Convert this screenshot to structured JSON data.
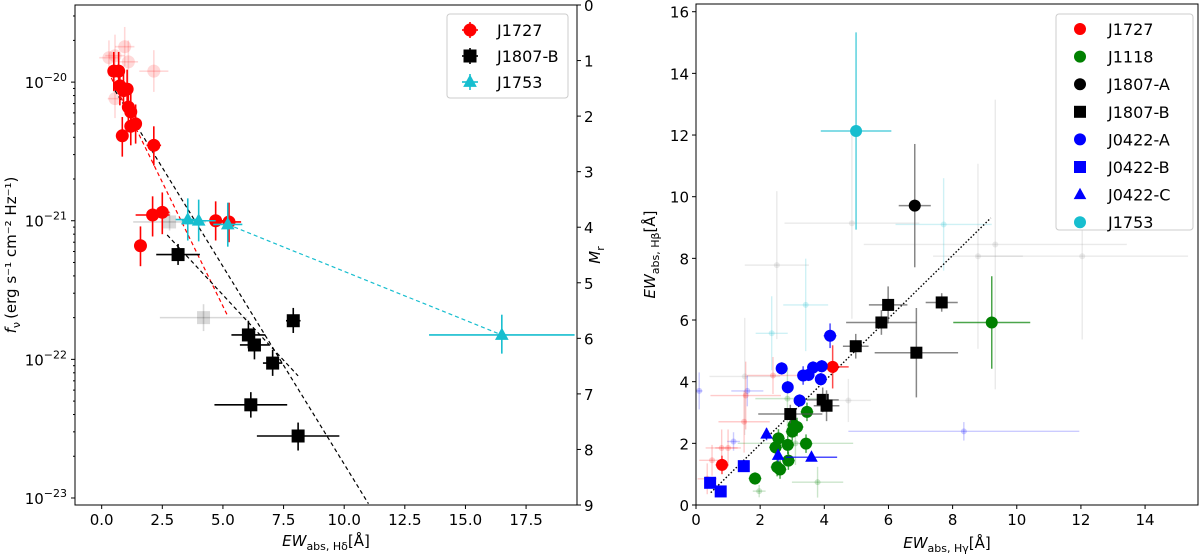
{
  "chart_data": [
    {
      "type": "scatter",
      "xlabel": "EW",
      "xlabel_sub": "abs, Hδ",
      "xlabel_unit": "[Å]",
      "ylabel": "f",
      "ylabel_sub": "ν",
      "ylabel_unit": "(erg s⁻¹ cm⁻² Hz⁻¹)",
      "y2label": "M",
      "y2label_sub": "r",
      "xlim": [
        -1.1,
        19.6
      ],
      "ylim": [
        8.9e-24,
        3.6e-20
      ],
      "yscale": "log",
      "y2lim": [
        0,
        9
      ],
      "y2_inverted": true,
      "xticks": [
        "0.0",
        "2.5",
        "5.0",
        "7.5",
        "10.0",
        "12.5",
        "15.0",
        "17.5"
      ],
      "yticks": [
        {
          "base": "10",
          "exp": "−20"
        },
        {
          "base": "10",
          "exp": "−21"
        },
        {
          "base": "10",
          "exp": "−22"
        },
        {
          "base": "10",
          "exp": "−23"
        }
      ],
      "y2ticks": [
        "0",
        "1",
        "2",
        "3",
        "4",
        "5",
        "6",
        "7",
        "8",
        "9"
      ],
      "grid": false,
      "legend_position": "top-right",
      "series": [
        {
          "name": "J1727",
          "color": "#ff0000",
          "marker": "circle",
          "points": [
            [
              0.5,
              1.2e-20,
              0.2,
              8.6e-21,
              1.65e-20
            ],
            [
              0.7,
              1.2e-20,
              0.2,
              8.6e-21,
              1.65e-20
            ],
            [
              0.75,
              9.4e-21,
              0.2,
              6.8e-21,
              1.3e-20
            ],
            [
              0.9,
              8.7e-21,
              0.2,
              6.3e-21,
              1.2e-20
            ],
            [
              1.05,
              8.9e-21,
              0.2,
              6.4e-21,
              1.23e-20
            ],
            [
              1.1,
              6.6e-21,
              0.2,
              4.8e-21,
              9.1e-21
            ],
            [
              1.2,
              6.1e-21,
              0.2,
              4.4e-21,
              8.4e-21
            ],
            [
              0.85,
              4.1e-21,
              0.2,
              2.9e-21,
              5.6e-21
            ],
            [
              1.2,
              4.8e-21,
              0.2,
              3.5e-21,
              6.6e-21
            ],
            [
              1.4,
              5e-21,
              0.2,
              3.6e-21,
              6.9e-21
            ],
            [
              2.15,
              3.5e-21,
              0.3,
              2.5e-21,
              4.8e-21
            ],
            [
              2.1,
              1.1e-21,
              0.7,
              7.7e-22,
              1.5e-21
            ],
            [
              2.5,
              1.15e-21,
              0.3,
              8e-22,
              1.6e-21
            ],
            [
              1.6,
              6.6e-22,
              0.2,
              4.7e-22,
              9.1e-22
            ],
            [
              4.7,
              1e-21,
              0.4,
              7.2e-22,
              1.38e-21
            ],
            [
              5.25,
              9.8e-22,
              0.5,
              7e-22,
              1.35e-21
            ]
          ],
          "faded": [
            [
              0.3,
              1.5e-20,
              0.4,
              1.1e-20,
              2e-20
            ],
            [
              0.55,
              1.55e-20,
              0.4,
              1.1e-20,
              2.2e-20
            ],
            [
              0.95,
              1.8e-20,
              0.4,
              1.3e-20,
              2.5e-20
            ],
            [
              1.1,
              1.4e-20,
              0.4,
              1e-20,
              2e-20
            ],
            [
              0.55,
              7.6e-21,
              0.3,
              5.5e-21,
              1.05e-20
            ],
            [
              2.15,
              1.2e-20,
              0.6,
              8.5e-21,
              1.7e-20
            ]
          ],
          "fit": [
            [
              0.4,
              1.07e-20
            ],
            [
              5.2,
              2.05e-22
            ]
          ]
        },
        {
          "name": "J1807-B",
          "color": "#000000",
          "marker": "square",
          "points": [
            [
              3.15,
              5.7e-22,
              0.9,
              4.8e-22,
              6.8e-22
            ],
            [
              6.05,
              1.5e-22,
              0.7,
              1.2e-22,
              1.9e-22
            ],
            [
              6.3,
              1.27e-22,
              0.6,
              1e-22,
              1.6e-22
            ],
            [
              7.05,
              9.4e-23,
              0.4,
              7.6e-23,
              1.17e-22
            ],
            [
              7.9,
              1.9e-22,
              0.3,
              1.55e-22,
              2.35e-22
            ],
            [
              6.15,
              4.7e-23,
              1.5,
              3.8e-23,
              5.8e-23
            ],
            [
              8.1,
              2.8e-23,
              1.7,
              2.2e-23,
              3.5e-23
            ]
          ],
          "faded": [
            [
              2.8,
              9.8e-22,
              1.5,
              8.5e-22,
              1.15e-21
            ],
            [
              4.2,
              2e-22,
              1.8,
              1.6e-22,
              2.5e-22
            ]
          ],
          "fits": [
            [
              [
                0.55,
                8.7e-21
              ],
              [
                11.0,
                9.1e-24
              ]
            ],
            [
              [
                2.7,
                7.9e-22
              ],
              [
                8.1,
                7.6e-23
              ]
            ]
          ]
        },
        {
          "name": "J1753",
          "color": "#17becf",
          "marker": "triangle",
          "points": [
            [
              3.55,
              1.02e-21,
              0.5,
              7.2e-22,
              1.45e-21
            ],
            [
              4.0,
              1e-21,
              0.7,
              7.1e-22,
              1.42e-21
            ],
            [
              5.2,
              9.4e-22,
              0.6,
              6.5e-22,
              1.35e-21
            ],
            [
              16.5,
              1.5e-22,
              3.0,
              1.1e-22,
              2.1e-22
            ]
          ],
          "fit": [
            [
              5.2,
              9.4e-22
            ],
            [
              16.5,
              1.5e-22
            ]
          ]
        }
      ]
    },
    {
      "type": "scatter",
      "xlabel": "EW",
      "xlabel_sub": "abs, Hγ",
      "xlabel_unit": "[Å]",
      "ylabel": "EW",
      "ylabel_sub": "abs, Hβ",
      "ylabel_unit": "[Å]",
      "xlim": [
        0,
        15.65
      ],
      "ylim": [
        0,
        16.25
      ],
      "xticks": [
        "0",
        "2",
        "4",
        "6",
        "8",
        "10",
        "12",
        "14"
      ],
      "yticks": [
        "0",
        "2",
        "4",
        "6",
        "8",
        "10",
        "12",
        "14",
        "16"
      ],
      "grid": false,
      "legend_position": "top-right",
      "one_to_one_line": [
        [
          0.46,
          0.4
        ],
        [
          9.19,
          9.31
        ]
      ],
      "series": [
        {
          "name": "J1727",
          "color": "#ff0000",
          "marker": "circle",
          "points": [
            [
              0.81,
              1.3,
              0.2,
              0.3
            ],
            [
              4.26,
              4.48,
              0.5,
              0.7
            ]
          ]
        },
        {
          "name": "J1118",
          "color": "#008000",
          "marker": "circle",
          "points": [
            [
              1.84,
              0.86,
              0.2,
              0.2
            ],
            [
              2.48,
              1.87,
              0.2,
              0.3
            ],
            [
              2.57,
              2.16,
              0.2,
              0.3
            ],
            [
              2.53,
              1.23,
              0.2,
              0.3
            ],
            [
              2.62,
              1.15,
              0.2,
              0.3
            ],
            [
              2.86,
              1.95,
              0.2,
              0.3
            ],
            [
              2.88,
              1.44,
              0.2,
              0.3
            ],
            [
              3.0,
              2.38,
              0.2,
              0.3
            ],
            [
              3.05,
              2.59,
              0.2,
              0.3
            ],
            [
              3.15,
              2.53,
              0.2,
              0.3
            ],
            [
              3.46,
              3.02,
              0.2,
              0.3
            ],
            [
              3.43,
              1.99,
              0.2,
              0.3
            ],
            [
              9.22,
              5.92,
              1.2,
              1.5
            ]
          ]
        },
        {
          "name": "J1807-A",
          "color": "#000000",
          "marker": "circle",
          "points": [
            [
              6.82,
              9.71,
              0.5,
              2.0
            ]
          ]
        },
        {
          "name": "J1807-B",
          "color": "#000000",
          "marker": "square",
          "points": [
            [
              2.94,
              2.95,
              1.0,
              0.3
            ],
            [
              3.95,
              3.41,
              0.5,
              0.4
            ],
            [
              4.07,
              3.22,
              0.4,
              0.5
            ],
            [
              4.98,
              5.15,
              0.4,
              0.4
            ],
            [
              5.78,
              5.92,
              1.1,
              0.4
            ],
            [
              5.99,
              6.49,
              0.6,
              0.6
            ],
            [
              7.66,
              6.57,
              0.5,
              0.3
            ],
            [
              6.87,
              4.94,
              1.3,
              1.45
            ]
          ]
        },
        {
          "name": "J0422-A",
          "color": "#0000ff",
          "marker": "circle",
          "points": [
            [
              2.67,
              4.43,
              0.1,
              0.2
            ],
            [
              2.86,
              3.82,
              0.1,
              0.2
            ],
            [
              3.23,
              3.39,
              0.1,
              0.2
            ],
            [
              3.34,
              4.2,
              0.1,
              0.3
            ],
            [
              3.51,
              4.22,
              0.1,
              0.2
            ],
            [
              3.65,
              4.46,
              0.1,
              0.2
            ],
            [
              3.92,
              4.5,
              0.1,
              0.2
            ],
            [
              3.89,
              4.08,
              0.1,
              0.2
            ],
            [
              4.18,
              5.49,
              0.2,
              0.4
            ]
          ]
        },
        {
          "name": "J0422-B",
          "color": "#0000ff",
          "marker": "square",
          "points": [
            [
              0.44,
              0.72,
              0.1,
              0.1
            ],
            [
              0.77,
              0.44,
              0.1,
              0.1
            ],
            [
              1.49,
              1.26,
              0.1,
              0.1
            ]
          ]
        },
        {
          "name": "J0422-C",
          "color": "#0000ff",
          "marker": "triangle",
          "points": [
            [
              2.2,
              2.3,
              0.1,
              0.2
            ],
            [
              2.56,
              1.61,
              0.1,
              0.2
            ],
            [
              3.6,
              1.55,
              0.8,
              0.1
            ]
          ]
        },
        {
          "name": "J1753",
          "color": "#17becf",
          "marker": "circle",
          "points": [
            [
              4.99,
              12.13,
              1.1,
              3.2
            ]
          ]
        }
      ],
      "faded_points": [
        {
          "color": "#999999",
          "points": [
            [
              4.86,
              9.14,
              2.1,
              3.1
            ],
            [
              2.52,
              7.78,
              1.0,
              2.4
            ],
            [
              8.79,
              8.07,
              1.4,
              3.0
            ],
            [
              9.33,
              8.45,
              4.1,
              4.7
            ],
            [
              12.04,
              8.07,
              3.3,
              2.7
            ],
            [
              4.75,
              3.39,
              0.7,
              0.7
            ],
            [
              1.52,
              4.17,
              1.1,
              1.9
            ]
          ]
        },
        {
          "color": "#17becf",
          "points": [
            [
              7.72,
              9.1,
              1.5,
              1.5
            ],
            [
              3.42,
              6.49,
              0.7,
              1.5
            ],
            [
              2.36,
              5.57,
              0.5,
              1.2
            ]
          ]
        },
        {
          "color": "#0000ff",
          "points": [
            [
              8.35,
              2.39,
              3.6,
              0.3
            ],
            [
              1.17,
              2.06,
              0.2,
              0.3
            ],
            [
              0.1,
              3.7,
              0.1,
              0.6
            ],
            [
              1.6,
              3.7,
              0.5,
              0.5
            ]
          ]
        },
        {
          "color": "#ff0000",
          "points": [
            [
              0.5,
              1.45,
              0.4,
              0.5
            ],
            [
              0.8,
              1.85,
              0.5,
              0.6
            ],
            [
              1.0,
              1.85,
              0.4,
              0.6
            ],
            [
              1.5,
              2.7,
              0.8,
              1.0
            ],
            [
              1.55,
              3.55,
              1.1,
              1.1
            ],
            [
              0.35,
              0.85,
              0.3,
              0.5
            ],
            [
              2.4,
              4.2,
              0.8,
              0.6
            ]
          ]
        },
        {
          "color": "#008000",
          "points": [
            [
              2.85,
              3.45,
              1.0,
              1.0
            ],
            [
              3.79,
              0.74,
              0.8,
              0.5
            ],
            [
              1.97,
              0.45,
              0.2,
              0.2
            ],
            [
              3.1,
              2.0,
              1.8,
              0.7
            ]
          ]
        }
      ]
    }
  ]
}
